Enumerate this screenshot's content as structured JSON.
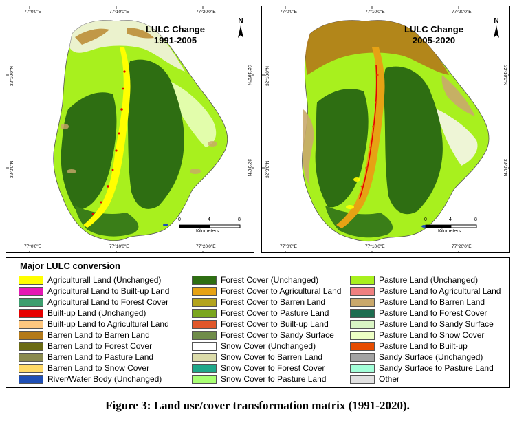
{
  "maps": [
    {
      "title_line1": "LULC Change",
      "title_line2": "1991-2005",
      "top_ticks": [
        "77°0'0\"E",
        "77°10'0\"E",
        "77°20'0\"E"
      ],
      "bottom_ticks": [
        "77°0'0\"E",
        "77°10'0\"E",
        "77°20'0\"E"
      ],
      "left_ticks": [
        "32°10'0\"N",
        "32°0'0\"N"
      ],
      "right_ticks": [
        "32°10'0\"N",
        "32°0'0\"N"
      ],
      "north": "N",
      "scale_ticks": [
        "0",
        "4",
        "8"
      ],
      "scale_unit": "Kilometers"
    },
    {
      "title_line1": "LULC Change",
      "title_line2": "2005-2020",
      "top_ticks": [
        "77°0'0\"E",
        "77°10'0\"E",
        "77°20'0\"E"
      ],
      "bottom_ticks": [
        "77°0'0\"E",
        "77°10'0\"E",
        "77°20'0\"E"
      ],
      "left_ticks": [
        "32°10'0\"N",
        "32°0'0\"N"
      ],
      "right_ticks": [
        "32°10'0\"N",
        "32°0'0\"N"
      ],
      "north": "N",
      "scale_ticks": [
        "0",
        "4",
        "8"
      ],
      "scale_unit": "Kilometers"
    }
  ],
  "legend": {
    "title": "Major LULC conversion",
    "columns": [
      [
        {
          "label": "Agriculturall Land (Unchanged)",
          "color": "#ffff00"
        },
        {
          "label": "Agricultural Land to Built-up Land",
          "color": "#e617b4"
        },
        {
          "label": "Agricultural Land to Forest Cover",
          "color": "#3c9e6e"
        },
        {
          "label": "Built-up Land (Unchanged)",
          "color": "#e60000"
        },
        {
          "label": "Built-up Land to Agricultural Land",
          "color": "#ffc87f"
        },
        {
          "label": "Barren Land to Barren Land",
          "color": "#b37a1a"
        },
        {
          "label": "Barren Land to Forest Cover",
          "color": "#6b6b14"
        },
        {
          "label": "Barren Land to Pasture Land",
          "color": "#8a8a4e"
        },
        {
          "label": "Barren Land to Snow Cover",
          "color": "#ffd966"
        },
        {
          "label": "River/Water Body (Unchanged)",
          "color": "#1f4fb5"
        }
      ],
      [
        {
          "label": "Forest Cover (Unchanged)",
          "color": "#2e6e12"
        },
        {
          "label": "Forest Cover to Agricultural Land",
          "color": "#e6a214"
        },
        {
          "label": "Forest Cover to Barren Land",
          "color": "#b3a41e"
        },
        {
          "label": "Forest Cover to Pasture Land",
          "color": "#7aa61e"
        },
        {
          "label": "Forest Cover to Built-up Land",
          "color": "#e0572a"
        },
        {
          "label": "Forest Cover to Sandy Surface",
          "color": "#6f8c49"
        },
        {
          "label": "Snow Cover (Unchanged)",
          "color": "#ffffff"
        },
        {
          "label": "Snow Cover to Barren Land",
          "color": "#dcdcaa"
        },
        {
          "label": "Snow Cover to Forest Cover",
          "color": "#1fa88a"
        },
        {
          "label": "Snow Cover to Pasture Land",
          "color": "#a8ff73"
        }
      ],
      [
        {
          "label": "Pasture Land (Unchanged)",
          "color": "#a8f01e"
        },
        {
          "label": "Pasture Land to Agricultural Land",
          "color": "#f08080"
        },
        {
          "label": "Pasture Land to Barren Land",
          "color": "#c9a86b"
        },
        {
          "label": "Pasture Land to Forest Cover",
          "color": "#1e6e50"
        },
        {
          "label": "Pasture Land to Sandy Surface",
          "color": "#d9f5c4"
        },
        {
          "label": "Pasture Land to Snow Cover",
          "color": "#ecffc4"
        },
        {
          "label": "Pasture Land to Built-up",
          "color": "#e64c00"
        },
        {
          "label": "Sandy Surface (Unchanged)",
          "color": "#a3a3a3"
        },
        {
          "label": "Sandy Surface to Pasture Land",
          "color": "#a3ffd9"
        },
        {
          "label": "Other",
          "color": "#e1e1e1"
        }
      ]
    ]
  },
  "caption": "Figure 3: Land use/cover transformation matrix (1991-2020)."
}
